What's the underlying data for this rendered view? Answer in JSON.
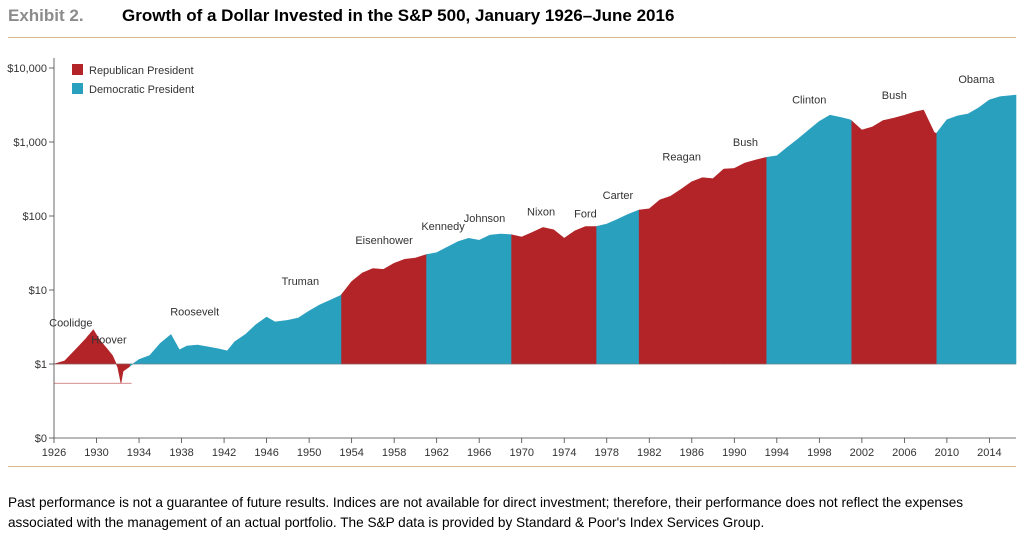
{
  "header": {
    "exhibit": "Exhibit 2.",
    "title": "Growth of a Dollar Invested in the S&P 500, January 1926–June 2016"
  },
  "footnote": "Past performance is not a guarantee of future results. Indices are not available for direct investment; therefore, their performance does not reflect the expenses associated with the management of an actual portfolio. The S&P data is provided by Standard & Poor's Index Services Group.",
  "colors": {
    "republican": "#b22428",
    "democratic": "#2aa0bf",
    "rule": "#d6b98a"
  },
  "chart_data": {
    "type": "area",
    "title": "Growth of a Dollar Invested in the S&P 500, January 1926–June 2016",
    "xlabel": "",
    "ylabel": "",
    "yscale": "log",
    "ylim": [
      0,
      10000
    ],
    "xlim": [
      1926,
      2016.5
    ],
    "y_ticks": [
      {
        "value": 10000,
        "label": "$10,000"
      },
      {
        "value": 1000,
        "label": "$1,000"
      },
      {
        "value": 100,
        "label": "$100"
      },
      {
        "value": 10,
        "label": "$10"
      },
      {
        "value": 1,
        "label": "$1"
      },
      {
        "value": 0,
        "label": "$0"
      }
    ],
    "x_ticks": [
      "1926",
      "1930",
      "1934",
      "1938",
      "1942",
      "1946",
      "1950",
      "1954",
      "1958",
      "1962",
      "1966",
      "1970",
      "1974",
      "1978",
      "1982",
      "1986",
      "1990",
      "1994",
      "1998",
      "2002",
      "2006",
      "2010",
      "2014"
    ],
    "legend": [
      {
        "name": "Republican President",
        "party": "R"
      },
      {
        "name": "Democratic President",
        "party": "D"
      }
    ],
    "legend_position": "top-left",
    "series": [
      {
        "name": "Growth of a Dollar",
        "points": [
          [
            1926.0,
            1.0
          ],
          [
            1927.0,
            1.1
          ],
          [
            1928.0,
            1.55
          ],
          [
            1929.0,
            2.2
          ],
          [
            1929.7,
            2.9
          ],
          [
            1930.3,
            2.1
          ],
          [
            1931.0,
            1.6
          ],
          [
            1931.5,
            1.3
          ],
          [
            1932.0,
            0.9
          ],
          [
            1932.3,
            0.55
          ],
          [
            1932.5,
            0.8
          ],
          [
            1933.0,
            0.9
          ],
          [
            1933.2,
            0.95
          ],
          [
            1934.0,
            1.15
          ],
          [
            1935.0,
            1.3
          ],
          [
            1936.0,
            1.9
          ],
          [
            1937.0,
            2.5
          ],
          [
            1937.8,
            1.55
          ],
          [
            1938.5,
            1.75
          ],
          [
            1939.5,
            1.8
          ],
          [
            1940.5,
            1.7
          ],
          [
            1941.5,
            1.6
          ],
          [
            1942.3,
            1.5
          ],
          [
            1943.0,
            2.0
          ],
          [
            1944.0,
            2.5
          ],
          [
            1945.0,
            3.4
          ],
          [
            1946.0,
            4.3
          ],
          [
            1946.8,
            3.7
          ],
          [
            1948.0,
            3.9
          ],
          [
            1949.0,
            4.2
          ],
          [
            1950.0,
            5.2
          ],
          [
            1951.0,
            6.3
          ],
          [
            1952.0,
            7.3
          ],
          [
            1953.0,
            8.5
          ],
          [
            1954.0,
            13.0
          ],
          [
            1955.0,
            17.0
          ],
          [
            1956.0,
            19.5
          ],
          [
            1957.0,
            19.0
          ],
          [
            1958.0,
            23.0
          ],
          [
            1959.0,
            26.0
          ],
          [
            1960.0,
            27.0
          ],
          [
            1961.0,
            30.0
          ],
          [
            1962.0,
            32.0
          ],
          [
            1963.0,
            38.0
          ],
          [
            1964.0,
            45.0
          ],
          [
            1965.0,
            50.0
          ],
          [
            1966.0,
            47.0
          ],
          [
            1967.0,
            55.0
          ],
          [
            1968.0,
            57.0
          ],
          [
            1969.0,
            56.0
          ],
          [
            1970.0,
            52.0
          ],
          [
            1971.0,
            60.0
          ],
          [
            1972.0,
            70.0
          ],
          [
            1973.0,
            65.0
          ],
          [
            1974.0,
            50.0
          ],
          [
            1975.0,
            63.0
          ],
          [
            1976.0,
            72.0
          ],
          [
            1977.0,
            72.0
          ],
          [
            1978.0,
            78.0
          ],
          [
            1979.0,
            90.0
          ],
          [
            1980.0,
            105.0
          ],
          [
            1981.0,
            120.0
          ],
          [
            1982.0,
            125.0
          ],
          [
            1983.0,
            165.0
          ],
          [
            1984.0,
            185.0
          ],
          [
            1985.0,
            230.0
          ],
          [
            1986.0,
            290.0
          ],
          [
            1987.0,
            330.0
          ],
          [
            1988.0,
            320.0
          ],
          [
            1989.0,
            430.0
          ],
          [
            1990.0,
            440.0
          ],
          [
            1991.0,
            520.0
          ],
          [
            1992.0,
            570.0
          ],
          [
            1993.0,
            620.0
          ],
          [
            1994.0,
            650.0
          ],
          [
            1995.0,
            850.0
          ],
          [
            1996.0,
            1100.0
          ],
          [
            1997.0,
            1450.0
          ],
          [
            1998.0,
            1900.0
          ],
          [
            1999.0,
            2300.0
          ],
          [
            2000.0,
            2150.0
          ],
          [
            2000.9,
            2000.0
          ],
          [
            2001.0,
            1950.0
          ],
          [
            2002.0,
            1450.0
          ],
          [
            2003.0,
            1600.0
          ],
          [
            2004.0,
            1950.0
          ],
          [
            2005.0,
            2100.0
          ],
          [
            2006.0,
            2300.0
          ],
          [
            2007.0,
            2550.0
          ],
          [
            2007.8,
            2700.0
          ],
          [
            2008.8,
            1350.0
          ],
          [
            2009.0,
            1300.0
          ],
          [
            2010.0,
            2000.0
          ],
          [
            2011.0,
            2250.0
          ],
          [
            2012.0,
            2400.0
          ],
          [
            2013.0,
            2900.0
          ],
          [
            2014.0,
            3700.0
          ],
          [
            2015.0,
            4100.0
          ],
          [
            2016.5,
            4300.0
          ]
        ]
      }
    ],
    "presidents": [
      {
        "name": "Coolidge",
        "party": "R",
        "start": 1926.0,
        "end": 1929.17
      },
      {
        "name": "Hoover",
        "party": "R",
        "start": 1929.17,
        "end": 1933.17
      },
      {
        "name": "Roosevelt",
        "party": "D",
        "start": 1933.17,
        "end": 1945.3
      },
      {
        "name": "Truman",
        "party": "D",
        "start": 1945.3,
        "end": 1953.05
      },
      {
        "name": "Eisenhower",
        "party": "R",
        "start": 1953.05,
        "end": 1961.05
      },
      {
        "name": "Kennedy",
        "party": "D",
        "start": 1961.05,
        "end": 1963.9
      },
      {
        "name": "Johnson",
        "party": "D",
        "start": 1963.9,
        "end": 1969.05
      },
      {
        "name": "Nixon",
        "party": "R",
        "start": 1969.05,
        "end": 1974.6
      },
      {
        "name": "Ford",
        "party": "R",
        "start": 1974.6,
        "end": 1977.05
      },
      {
        "name": "Carter",
        "party": "D",
        "start": 1977.05,
        "end": 1981.05
      },
      {
        "name": "Reagan",
        "party": "R",
        "start": 1981.05,
        "end": 1989.05
      },
      {
        "name": "Bush",
        "party": "R",
        "start": 1989.05,
        "end": 1993.05
      },
      {
        "name": "Clinton",
        "party": "D",
        "start": 1993.05,
        "end": 2001.05
      },
      {
        "name": "Bush",
        "party": "R",
        "start": 2001.05,
        "end": 2009.05
      },
      {
        "name": "Obama",
        "party": "D",
        "start": 2009.05,
        "end": 2016.5
      }
    ]
  }
}
